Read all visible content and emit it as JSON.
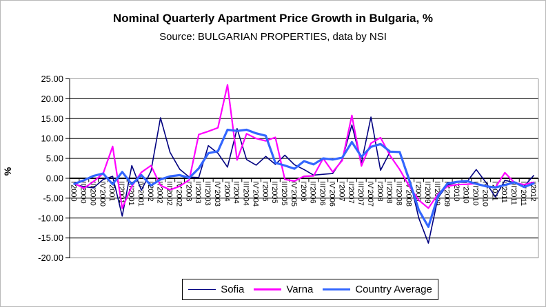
{
  "title": "Nominal Quarterly Apartment Price Growth in Bulgaria, %",
  "subtitle": "Source: BULGARIAN PROPERTIES, data by NSI",
  "colors": {
    "background": "#FFFFFF",
    "grid": "#000000",
    "plot_border": "#9a9a9a",
    "zero_line": "#000000",
    "legend_border": "#000000",
    "sofia": "#000080",
    "varna": "#FF00FF",
    "country_average": "#3366FF"
  },
  "chart_data": {
    "type": "line",
    "title": "Nominal Quarterly Apartment Price Growth in Bulgaria, %",
    "subtitle": "Source: BULGARIAN PROPERTIES, data by NSI",
    "xlabel": "",
    "ylabel": "%",
    "ylim": [
      -20,
      25
    ],
    "ytick_step": 5,
    "ytick_format": "two_decimals",
    "grid": true,
    "legend_position": "bottom",
    "x_labels_rotated": true,
    "categories": [
      "I'2000",
      "II'2000",
      "III'2000",
      "IV'2000",
      "I'2001",
      "II'2001",
      "III'2001",
      "IV'2001",
      "I'2002",
      "II'2002",
      "III'2002",
      "IV'2002",
      "I'2003",
      "II'2003",
      "III'2003",
      "IV'2003",
      "I'2004",
      "II'2004",
      "III'2004",
      "IV'2004",
      "I'2005",
      "II'2005",
      "III'2005",
      "IV'2005",
      "I'2006",
      "II'2006",
      "III'2006",
      "IV'2006",
      "I'2007",
      "II'2007",
      "III'2007",
      "IV'2007",
      "I'2008",
      "II'2008",
      "III'2008",
      "IV'2008",
      "I'2009",
      "II'2009",
      "III'2009",
      "IV'2009",
      "I'2010",
      "II'2010",
      "III'2010",
      "IV'2010",
      "I'2011",
      "II'2011",
      "III'2011",
      "IV'2011",
      "I'2012"
    ],
    "series": [
      {
        "name": "Sofia",
        "color": "#000080",
        "line_width": 1.6,
        "values": [
          -1.5,
          -2.1,
          -2.4,
          -0.3,
          0.5,
          -9.5,
          3.2,
          -3.0,
          1.8,
          15.2,
          6.5,
          2.3,
          0.3,
          0.2,
          8.2,
          6.3,
          2.8,
          12.5,
          4.7,
          3.3,
          5.5,
          3.5,
          5.8,
          3.4,
          2.2,
          0.8,
          1.0,
          1.2,
          4.8,
          13.4,
          3.9,
          15.4,
          2.0,
          6.7,
          6.7,
          0.0,
          -10.0,
          -16.3,
          -4.9,
          -1.7,
          -1.0,
          -1.0,
          2.2,
          -1.0,
          -4.7,
          -0.5,
          -1.1,
          -2.0,
          0.7
        ]
      },
      {
        "name": "Varna",
        "color": "#FF00FF",
        "line_width": 2.2,
        "values": [
          -1.3,
          -2.5,
          -0.8,
          1.2,
          8.0,
          -7.5,
          -2.0,
          1.5,
          3.2,
          -1.8,
          -2.9,
          -2.0,
          -0.4,
          11.0,
          11.8,
          12.7,
          23.5,
          4.6,
          11.2,
          10.0,
          9.4,
          10.3,
          -0.3,
          -0.7,
          0.5,
          0.6,
          5.0,
          1.6,
          4.5,
          15.8,
          3.1,
          8.8,
          10.2,
          5.7,
          2.2,
          -2.0,
          -5.5,
          -7.5,
          -4.0,
          -2.0,
          -1.6,
          -1.5,
          -1.3,
          -2.0,
          -2.3,
          1.4,
          -1.1,
          -1.6,
          -1.0
        ]
      },
      {
        "name": "Country Average",
        "color": "#3366FF",
        "line_width": 3.2,
        "values": [
          -1.4,
          -0.5,
          0.6,
          1.2,
          -1.5,
          1.6,
          -1.5,
          0.8,
          -1.8,
          -0.3,
          0.5,
          0.8,
          0.1,
          2.5,
          6.3,
          6.8,
          12.2,
          11.9,
          12.2,
          11.3,
          10.7,
          3.9,
          3.2,
          2.4,
          4.3,
          3.5,
          5.0,
          4.7,
          5.2,
          9.1,
          5.4,
          7.9,
          8.6,
          6.7,
          6.6,
          -0.5,
          -8.0,
          -12.2,
          -4.5,
          -1.3,
          -0.9,
          -0.7,
          -1.4,
          -2.0,
          -2.3,
          -1.7,
          -1.0,
          -2.2,
          -1.3
        ]
      }
    ]
  }
}
